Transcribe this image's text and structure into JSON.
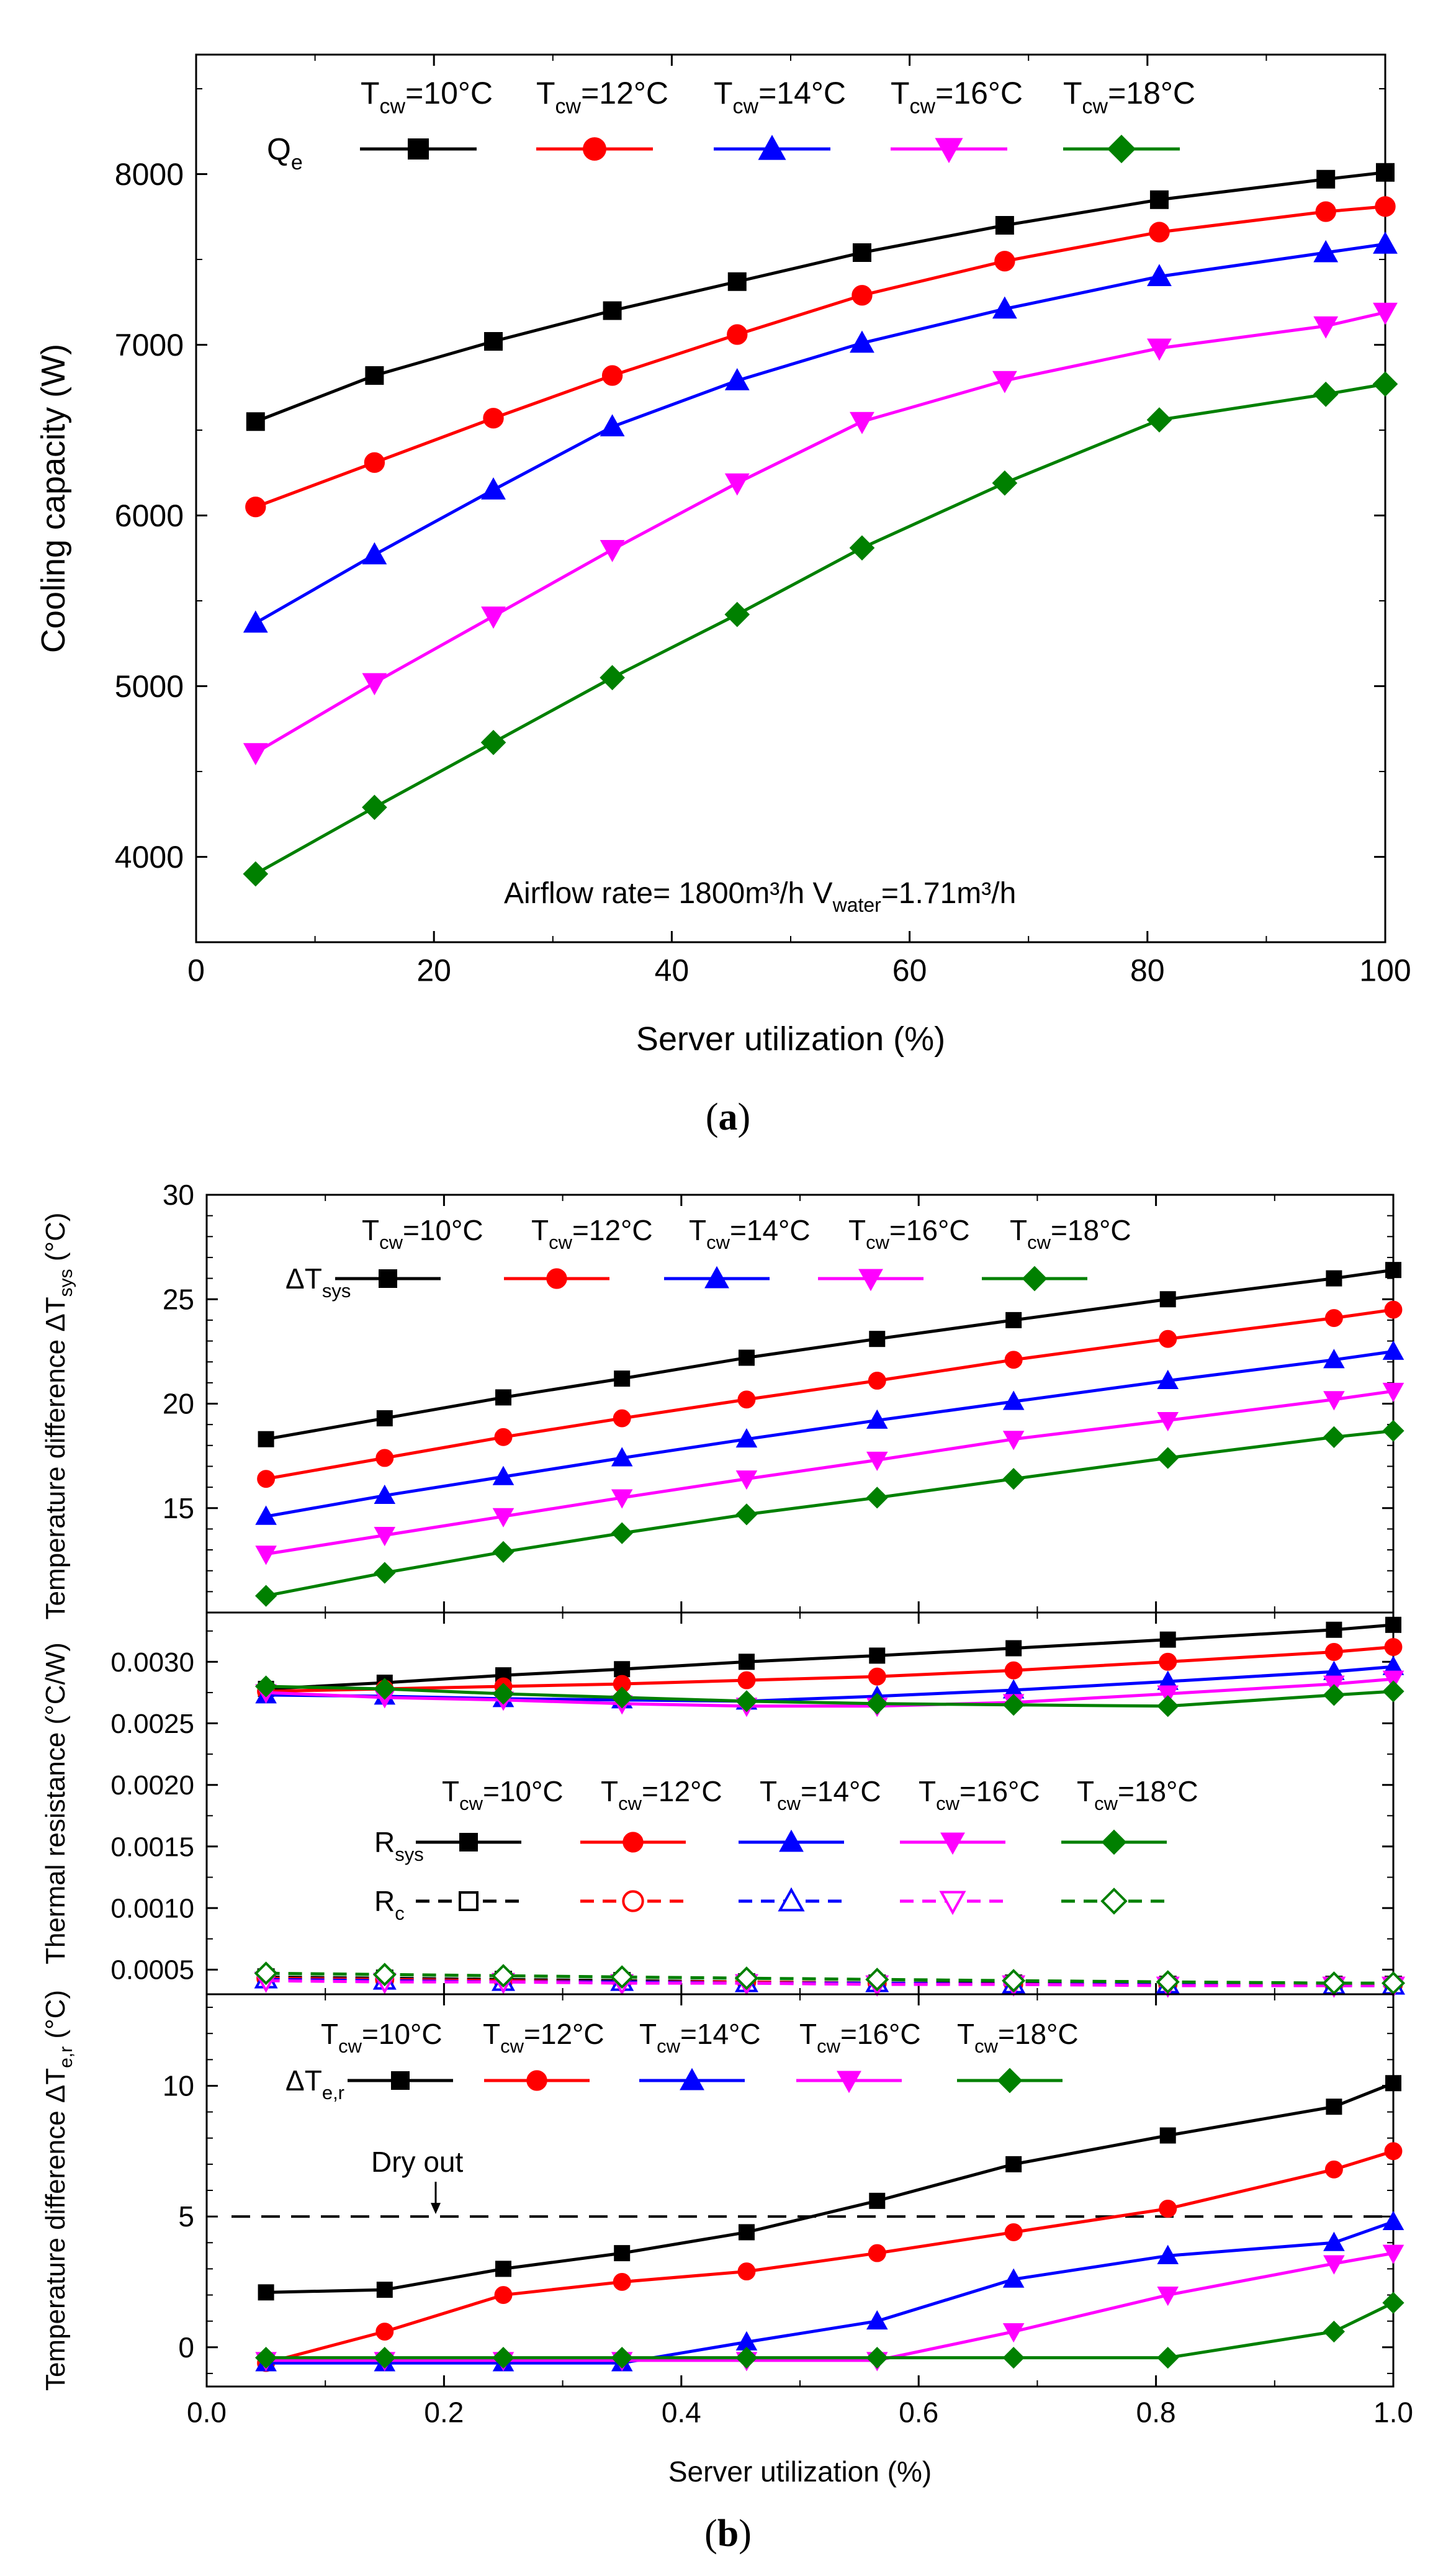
{
  "colors": {
    "t10": "#000000",
    "t12": "#ff0000",
    "t14": "#0000ff",
    "t16": "#ff00ff",
    "t18": "#008000"
  },
  "legend_labels": [
    "T",
    "cw",
    "=10°C",
    "=12°C",
    "=14°C",
    "=16°C",
    "=18°C"
  ],
  "chart_data": [
    {
      "id": "a",
      "type": "line",
      "caption": "a",
      "xlabel": "Server utilization (%)",
      "ylabel": "Cooling capacity (W)",
      "xlim": [
        0,
        100
      ],
      "ylim": [
        3500,
        8700
      ],
      "xticks": [
        0,
        20,
        40,
        60,
        80,
        100
      ],
      "yticks": [
        4000,
        5000,
        6000,
        7000,
        8000
      ],
      "x": [
        5,
        15,
        25,
        35,
        45.5,
        56,
        68,
        81,
        95,
        100
      ],
      "legend_row_label": "Q",
      "legend_row_sub": "e",
      "annotation": "Airflow rate= 1800m³/h  V",
      "annotation_sub": "water",
      "annotation_tail": "=1.71m³/h",
      "series": [
        {
          "name": "Tcw=10°C",
          "values": [
            6550,
            6820,
            7020,
            7200,
            7370,
            7540,
            7700,
            7850,
            7970,
            8010
          ]
        },
        {
          "name": "Tcw=12°C",
          "values": [
            6050,
            6310,
            6570,
            6820,
            7060,
            7290,
            7490,
            7660,
            7780,
            7810
          ]
        },
        {
          "name": "Tcw=14°C",
          "values": [
            5370,
            5770,
            6150,
            6520,
            6790,
            7010,
            7210,
            7400,
            7540,
            7590
          ]
        },
        {
          "name": "Tcw=16°C",
          "values": [
            4610,
            5020,
            5410,
            5800,
            6190,
            6550,
            6790,
            6980,
            7110,
            7190
          ]
        },
        {
          "name": "Tcw=18°C",
          "values": [
            3900,
            4290,
            4670,
            5050,
            5420,
            5810,
            6190,
            6560,
            6710,
            6770
          ]
        }
      ]
    },
    {
      "id": "b1",
      "type": "line",
      "ylabel": "Temperature difference ΔT",
      "ylabel_sub": "sys",
      "ylabel_tail": " (°C)",
      "xlim": [
        0.0,
        1.0
      ],
      "ylim": [
        10,
        30
      ],
      "yticks": [
        15,
        20,
        25,
        30
      ],
      "x": [
        0.05,
        0.15,
        0.25,
        0.35,
        0.455,
        0.565,
        0.68,
        0.81,
        0.95,
        1.0
      ],
      "legend_row_label": "ΔT",
      "legend_row_sub": "sys",
      "series": [
        {
          "name": "Tcw=10°C",
          "values": [
            18.3,
            19.3,
            20.3,
            21.2,
            22.2,
            23.1,
            24.0,
            25.0,
            26.0,
            26.4
          ]
        },
        {
          "name": "Tcw=12°C",
          "values": [
            16.4,
            17.4,
            18.4,
            19.3,
            20.2,
            21.1,
            22.1,
            23.1,
            24.1,
            24.5
          ]
        },
        {
          "name": "Tcw=14°C",
          "values": [
            14.6,
            15.6,
            16.5,
            17.4,
            18.3,
            19.2,
            20.1,
            21.1,
            22.1,
            22.5
          ]
        },
        {
          "name": "Tcw=16°C",
          "values": [
            12.8,
            13.7,
            14.6,
            15.5,
            16.4,
            17.3,
            18.3,
            19.2,
            20.2,
            20.6
          ]
        },
        {
          "name": "Tcw=18°C",
          "values": [
            10.8,
            11.9,
            12.9,
            13.8,
            14.7,
            15.5,
            16.4,
            17.4,
            18.4,
            18.7
          ]
        }
      ]
    },
    {
      "id": "b2",
      "type": "line",
      "ylabel": "Thermal resistance (°C/W)",
      "xlim": [
        0.0,
        1.0
      ],
      "ylim": [
        0.0003,
        0.0034
      ],
      "yticks": [
        0.0005,
        0.001,
        0.0015,
        0.002,
        0.0025,
        0.003
      ],
      "ytick_labels": [
        "0.0005",
        "0.0010",
        "0.0015",
        "0.0020",
        "0.0025",
        "0.0030"
      ],
      "x": [
        0.05,
        0.15,
        0.25,
        0.35,
        0.455,
        0.565,
        0.68,
        0.81,
        0.95,
        1.0
      ],
      "legend_row_label": "R",
      "legend_row_sub": "sys",
      "legend_row2_label": "R",
      "legend_row2_sub": "c",
      "series": [
        {
          "name": "Rsys Tcw=10°C",
          "values": [
            0.00278,
            0.00283,
            0.00289,
            0.00294,
            0.003,
            0.00305,
            0.00311,
            0.00318,
            0.00326,
            0.0033
          ]
        },
        {
          "name": "Rsys Tcw=12°C",
          "values": [
            0.00276,
            0.00278,
            0.0028,
            0.00282,
            0.00285,
            0.00288,
            0.00293,
            0.003,
            0.00308,
            0.00312
          ]
        },
        {
          "name": "Rsys Tcw=14°C",
          "values": [
            0.00273,
            0.00272,
            0.0027,
            0.00269,
            0.00268,
            0.00272,
            0.00277,
            0.00284,
            0.00292,
            0.00296
          ]
        },
        {
          "name": "Rsys Tcw=16°C",
          "values": [
            0.00275,
            0.00271,
            0.00269,
            0.00266,
            0.00264,
            0.00264,
            0.00267,
            0.00274,
            0.00282,
            0.00286
          ]
        },
        {
          "name": "Rsys Tcw=18°C",
          "values": [
            0.0028,
            0.00278,
            0.00274,
            0.00271,
            0.00268,
            0.00266,
            0.00265,
            0.00264,
            0.00273,
            0.00276
          ]
        },
        {
          "name": "Rc Tcw=10°C",
          "values": [
            0.00044,
            0.00043,
            0.00042,
            0.00041,
            0.0004,
            0.00039,
            0.00039,
            0.00038,
            0.00038,
            0.00038
          ]
        },
        {
          "name": "Rc Tcw=12°C",
          "values": [
            0.00043,
            0.00042,
            0.00041,
            0.0004,
            0.0004,
            0.00039,
            0.00038,
            0.00038,
            0.00038,
            0.00038
          ]
        },
        {
          "name": "Rc Tcw=14°C",
          "values": [
            0.00042,
            0.00041,
            0.0004,
            0.0004,
            0.00039,
            0.00039,
            0.00038,
            0.00038,
            0.00037,
            0.00037
          ]
        },
        {
          "name": "Rc Tcw=16°C",
          "values": [
            0.00041,
            0.0004,
            0.0004,
            0.00039,
            0.00039,
            0.00038,
            0.00038,
            0.00037,
            0.00037,
            0.00037
          ]
        },
        {
          "name": "Rc Tcw=18°C",
          "values": [
            0.00047,
            0.00046,
            0.00045,
            0.00044,
            0.00043,
            0.00042,
            0.00041,
            0.0004,
            0.00039,
            0.00039
          ]
        }
      ]
    },
    {
      "id": "b3",
      "type": "line",
      "caption": "b",
      "ylabel": "Temperature difference ΔT",
      "ylabel_sub": "e,r",
      "ylabel_tail": " (°C)",
      "xlabel": "Server utilization (%)",
      "xlim": [
        0.0,
        1.0
      ],
      "ylim": [
        -1.5,
        13.5
      ],
      "xticks": [
        0.0,
        0.2,
        0.4,
        0.6,
        0.8,
        1.0
      ],
      "xtick_labels": [
        "0.0",
        "0.2",
        "0.4",
        "0.6",
        "0.8",
        "1.0"
      ],
      "yticks": [
        0,
        5,
        10
      ],
      "x": [
        0.05,
        0.15,
        0.25,
        0.35,
        0.455,
        0.565,
        0.68,
        0.81,
        0.95,
        1.0
      ],
      "legend_row_label": "ΔT",
      "legend_row_sub": "e,r",
      "dryout_label": "Dry out",
      "dryout_value": 5.0,
      "series": [
        {
          "name": "Tcw=10°C",
          "values": [
            2.1,
            2.2,
            3.0,
            3.6,
            4.4,
            5.6,
            7.0,
            8.1,
            9.2,
            10.1
          ]
        },
        {
          "name": "Tcw=12°C",
          "values": [
            -0.6,
            0.6,
            2.0,
            2.5,
            2.9,
            3.6,
            4.4,
            5.3,
            6.8,
            7.5
          ]
        },
        {
          "name": "Tcw=14°C",
          "values": [
            -0.6,
            -0.6,
            -0.6,
            -0.6,
            0.2,
            1.0,
            2.6,
            3.5,
            4.0,
            4.8
          ]
        },
        {
          "name": "Tcw=16°C",
          "values": [
            -0.5,
            -0.5,
            -0.5,
            -0.5,
            -0.5,
            -0.5,
            0.6,
            2.0,
            3.2,
            3.6
          ]
        },
        {
          "name": "Tcw=18°C",
          "values": [
            -0.4,
            -0.4,
            -0.4,
            -0.4,
            -0.4,
            -0.4,
            -0.4,
            -0.4,
            0.6,
            1.7
          ]
        }
      ]
    }
  ]
}
